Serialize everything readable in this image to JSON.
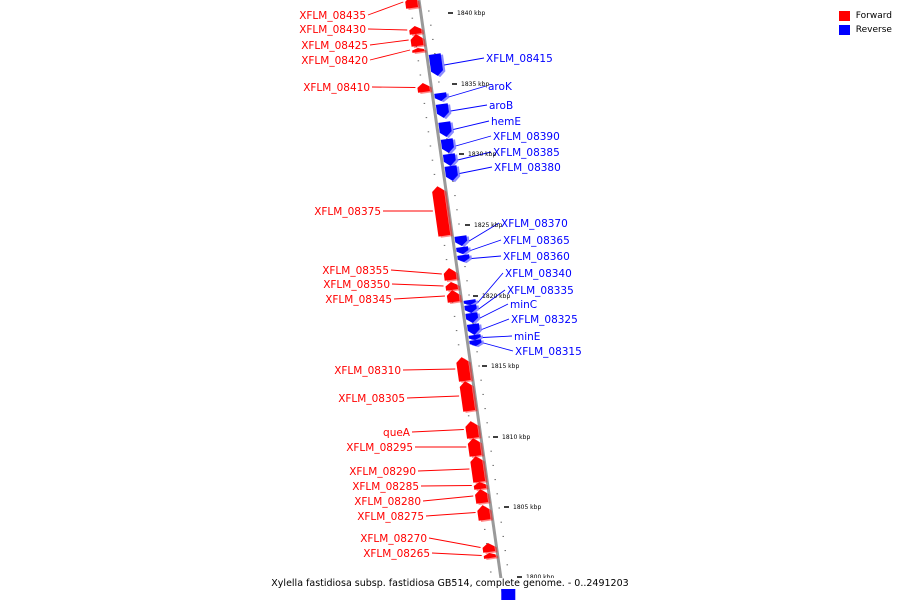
{
  "legend": [
    {
      "label": "Forward",
      "color": "#ff0000"
    },
    {
      "label": "Reverse",
      "color": "#0000ff"
    }
  ],
  "caption": "Xylella fastidiosa subsp. fastidiosa GB514, complete genome. - 0..2491203",
  "colors": {
    "forward": "#ff0000",
    "reverse": "#0000ff",
    "backbone": "#9a9a9a"
  },
  "scale_labels": [
    "1840 kbp",
    "1835 kbp",
    "1830 kbp",
    "1825 kbp",
    "1820 kbp",
    "1815 kbp",
    "1810 kbp",
    "1805 kbp",
    "1800 kbp"
  ],
  "genes": [
    {
      "name": "XFLM_08435",
      "strand": "forward"
    },
    {
      "name": "XFLM_08430",
      "strand": "forward"
    },
    {
      "name": "XFLM_08425",
      "strand": "forward"
    },
    {
      "name": "XFLM_08420",
      "strand": "forward"
    },
    {
      "name": "XFLM_08415",
      "strand": "reverse"
    },
    {
      "name": "XFLM_08410",
      "strand": "forward"
    },
    {
      "name": "aroK",
      "strand": "reverse"
    },
    {
      "name": "aroB",
      "strand": "reverse"
    },
    {
      "name": "hemE",
      "strand": "reverse"
    },
    {
      "name": "XFLM_08390",
      "strand": "reverse"
    },
    {
      "name": "XFLM_08385",
      "strand": "reverse"
    },
    {
      "name": "XFLM_08380",
      "strand": "reverse"
    },
    {
      "name": "XFLM_08375",
      "strand": "forward"
    },
    {
      "name": "XFLM_08370",
      "strand": "reverse"
    },
    {
      "name": "XFLM_08365",
      "strand": "reverse"
    },
    {
      "name": "XFLM_08360",
      "strand": "reverse"
    },
    {
      "name": "XFLM_08355",
      "strand": "forward"
    },
    {
      "name": "XFLM_08350",
      "strand": "forward"
    },
    {
      "name": "XFLM_08345",
      "strand": "forward"
    },
    {
      "name": "XFLM_08340",
      "strand": "reverse"
    },
    {
      "name": "XFLM_08335",
      "strand": "reverse"
    },
    {
      "name": "minC",
      "strand": "reverse"
    },
    {
      "name": "XFLM_08325",
      "strand": "reverse"
    },
    {
      "name": "minE",
      "strand": "reverse"
    },
    {
      "name": "XFLM_08315",
      "strand": "reverse"
    },
    {
      "name": "XFLM_08310",
      "strand": "forward"
    },
    {
      "name": "XFLM_08305",
      "strand": "forward"
    },
    {
      "name": "queA",
      "strand": "forward"
    },
    {
      "name": "XFLM_08295",
      "strand": "forward"
    },
    {
      "name": "XFLM_08290",
      "strand": "forward"
    },
    {
      "name": "XFLM_08285",
      "strand": "forward"
    },
    {
      "name": "XFLM_08280",
      "strand": "forward"
    },
    {
      "name": "XFLM_08275",
      "strand": "forward"
    },
    {
      "name": "XFLM_08270",
      "strand": "forward"
    },
    {
      "name": "XFLM_08265",
      "strand": "forward"
    }
  ]
}
